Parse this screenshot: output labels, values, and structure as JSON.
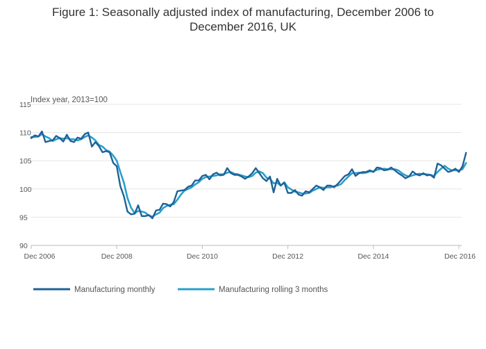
{
  "chart_data": {
    "type": "line",
    "title_lines": [
      "Figure 1: Seasonally adjusted index of manufacturing, December 2006 to",
      "December 2016, UK"
    ],
    "ylabel": "Index year, 2013=100",
    "xlabel": "",
    "ylim": [
      90,
      115
    ],
    "yticks": [
      90,
      95,
      100,
      105,
      110,
      115
    ],
    "xlim": [
      0,
      120
    ],
    "xticks": [
      {
        "x": 0,
        "label": "Dec 2006"
      },
      {
        "x": 24,
        "label": "Dec 2008"
      },
      {
        "x": 48,
        "label": "Dec 2010"
      },
      {
        "x": 72,
        "label": "Dec 2012"
      },
      {
        "x": 96,
        "label": "Dec 2014"
      },
      {
        "x": 120,
        "label": "Dec 2016"
      }
    ],
    "grid": true,
    "legend_position": "bottom-left",
    "series": [
      {
        "name": "Manufacturing monthly",
        "color": "#206095",
        "values": [
          109.0,
          109.5,
          109.3,
          110.2,
          108.3,
          108.5,
          108.6,
          109.4,
          109.0,
          108.4,
          109.6,
          108.5,
          108.3,
          109.1,
          108.9,
          109.7,
          110.0,
          107.5,
          108.3,
          107.6,
          106.5,
          106.7,
          106.5,
          104.6,
          104.0,
          100.5,
          98.7,
          96.0,
          95.5,
          95.6,
          97.1,
          95.2,
          95.2,
          95.4,
          94.8,
          96.2,
          96.3,
          97.4,
          97.3,
          96.9,
          97.7,
          99.6,
          99.7,
          99.8,
          100.4,
          100.6,
          101.5,
          101.5,
          102.3,
          102.5,
          101.7,
          102.6,
          102.9,
          102.4,
          102.5,
          103.7,
          102.8,
          102.5,
          102.5,
          102.2,
          101.8,
          102.2,
          102.8,
          103.7,
          102.8,
          101.9,
          101.4,
          102.2,
          99.4,
          101.8,
          100.6,
          101.1,
          99.3,
          99.3,
          99.8,
          99.0,
          98.8,
          99.6,
          99.4,
          100.0,
          100.6,
          100.3,
          99.8,
          100.6,
          100.6,
          100.3,
          100.9,
          101.6,
          102.3,
          102.6,
          103.5,
          102.3,
          102.8,
          103.0,
          103.0,
          103.3,
          103.0,
          103.8,
          103.7,
          103.3,
          103.4,
          103.8,
          103.3,
          102.8,
          102.4,
          101.9,
          102.2,
          103.1,
          102.6,
          102.4,
          102.8,
          102.4,
          102.5,
          102.0,
          104.5,
          104.2,
          103.6,
          103.0,
          103.2,
          103.6,
          103.0,
          104.0,
          106.4
        ]
      },
      {
        "name": "Manufacturing rolling 3 months",
        "color": "#27a0cc",
        "values": [
          109.2,
          109.2,
          109.3,
          109.7,
          109.3,
          109.0,
          108.5,
          108.8,
          109.0,
          108.9,
          109.0,
          108.8,
          108.8,
          108.6,
          108.8,
          109.2,
          109.5,
          109.1,
          108.6,
          107.8,
          107.5,
          106.9,
          106.6,
          105.9,
          105.0,
          103.0,
          101.1,
          98.4,
          96.7,
          95.7,
          96.1,
          96.0,
          95.8,
          95.3,
          95.1,
          95.5,
          95.8,
          96.6,
          97.0,
          97.2,
          97.3,
          98.1,
          99.0,
          99.7,
          100.0,
          100.3,
          100.8,
          101.2,
          101.8,
          102.1,
          102.2,
          102.3,
          102.4,
          102.6,
          102.6,
          102.9,
          103.0,
          102.7,
          102.6,
          102.4,
          102.2,
          102.1,
          102.3,
          102.9,
          103.1,
          102.8,
          102.0,
          101.8,
          101.0,
          101.1,
          100.6,
          101.2,
          100.3,
          99.9,
          99.5,
          99.4,
          99.2,
          99.2,
          99.3,
          99.7,
          100.0,
          100.3,
          100.2,
          100.3,
          100.3,
          100.5,
          100.6,
          100.9,
          101.6,
          102.2,
          102.8,
          102.8,
          102.9,
          102.8,
          102.9,
          103.1,
          103.1,
          103.4,
          103.5,
          103.6,
          103.5,
          103.5,
          103.5,
          103.3,
          102.8,
          102.4,
          102.2,
          102.4,
          102.6,
          102.7,
          102.6,
          102.6,
          102.5,
          102.3,
          103.0,
          103.6,
          104.1,
          103.6,
          103.3,
          103.3,
          103.3,
          103.5,
          104.6
        ]
      }
    ]
  }
}
